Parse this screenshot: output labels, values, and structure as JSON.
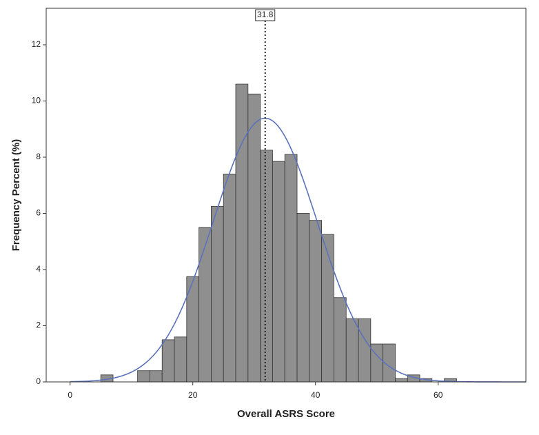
{
  "chart_data": {
    "type": "histogram",
    "x_label": "Overall ASRS Score",
    "y_label": "Frequency Percent (%)",
    "bins": [
      5,
      7,
      9,
      11,
      13,
      15,
      17,
      19,
      21,
      23,
      25,
      27,
      29,
      31,
      33,
      35,
      37,
      39,
      41,
      43,
      45,
      47,
      49,
      51,
      53,
      55,
      57,
      59,
      61,
      63
    ],
    "counts": [
      0.25,
      0,
      0,
      0.4,
      0.4,
      1.5,
      1.6,
      3.75,
      5.5,
      6.25,
      7.4,
      10.6,
      10.25,
      8.25,
      7.85,
      8.1,
      6.0,
      5.75,
      5.25,
      3.0,
      2.25,
      2.25,
      1.35,
      1.35,
      0.12,
      0.25,
      0.12,
      0,
      0.12
    ],
    "color": "#8f8f8f",
    "xlim": [
      -3.9,
      74.3
    ],
    "ylim": [
      0,
      13.3
    ],
    "xticks": [
      0,
      20,
      40,
      60
    ],
    "yticks": [
      0,
      2,
      4,
      6,
      8,
      10,
      12
    ],
    "grid": false,
    "curve": {
      "mean": 31.8,
      "sd": 8.5,
      "color": "#5b72bb"
    },
    "mean_line": {
      "value": 31.8,
      "label": "31.8"
    }
  }
}
